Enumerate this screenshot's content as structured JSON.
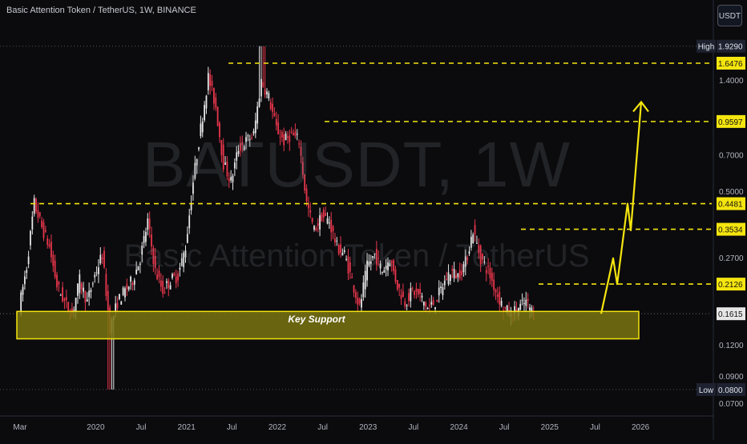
{
  "header": {
    "title": "Basic Attention Token / TetherUS, 1W, BINANCE",
    "currency_button": "USDT"
  },
  "watermark": {
    "symbol": "BATUSDT, 1W",
    "name": "Basic Attention Token / TetherUS"
  },
  "annotations": {
    "support_label": "Key Support"
  },
  "colors": {
    "background": "#0b0b0e",
    "up_candle": "#e6e6e6",
    "down_candle": "#e8364b",
    "level_line": "#f5e50e",
    "support_fill": "#7a7410",
    "support_border": "#f5e50e",
    "projection": "#f5e50e",
    "axis_text": "#b2b5be"
  },
  "chart_data": {
    "type": "candlestick",
    "scale": "log",
    "ylim": [
      0.064,
      2.2
    ],
    "x_ticks": [
      "Mar",
      "2020",
      "Jul",
      "2021",
      "Jul",
      "2022",
      "Jul",
      "2023",
      "Jul",
      "2024",
      "Jul",
      "2025",
      "Jul",
      "2026"
    ],
    "y_ticks": [
      "1.4000",
      "0.7000",
      "0.5000",
      "0.2700",
      "0.1200",
      "0.0900",
      "0.0700"
    ],
    "price_labels": [
      {
        "prefix": "High",
        "value": "1.9290"
      },
      {
        "prefix": "",
        "value": "1.6476"
      },
      {
        "prefix": "",
        "value": "0.9597"
      },
      {
        "prefix": "",
        "value": "0.4481"
      },
      {
        "prefix": "",
        "value": "0.3534"
      },
      {
        "prefix": "",
        "value": "0.2126"
      },
      {
        "prefix": "",
        "value": "0.1615"
      },
      {
        "prefix": "Low",
        "value": "0.0800"
      }
    ],
    "resistance_levels": [
      1.6476,
      0.9597,
      0.4481,
      0.3534,
      0.2126
    ],
    "support_zone": [
      0.128,
      0.165
    ],
    "last_price": 0.1615,
    "series": [
      {
        "t": "2019-03",
        "c": 0.17
      },
      {
        "t": "2019-04",
        "c": 0.25
      },
      {
        "t": "2019-05",
        "c": 0.45
      },
      {
        "t": "2019-06",
        "c": 0.36
      },
      {
        "t": "2019-07",
        "c": 0.3
      },
      {
        "t": "2019-08",
        "c": 0.21
      },
      {
        "t": "2019-09",
        "c": 0.18
      },
      {
        "t": "2019-10",
        "c": 0.16
      },
      {
        "t": "2019-11",
        "c": 0.22
      },
      {
        "t": "2019-12",
        "c": 0.18
      },
      {
        "t": "2020-01",
        "c": 0.23
      },
      {
        "t": "2020-02",
        "c": 0.28
      },
      {
        "t": "2020-03",
        "c": 0.14
      },
      {
        "t": "2020-04",
        "c": 0.18
      },
      {
        "t": "2020-05",
        "c": 0.2
      },
      {
        "t": "2020-06",
        "c": 0.22
      },
      {
        "t": "2020-07",
        "c": 0.27
      },
      {
        "t": "2020-08",
        "c": 0.38
      },
      {
        "t": "2020-09",
        "c": 0.24
      },
      {
        "t": "2020-10",
        "c": 0.2
      },
      {
        "t": "2020-11",
        "c": 0.22
      },
      {
        "t": "2020-12",
        "c": 0.23
      },
      {
        "t": "2021-01",
        "c": 0.3
      },
      {
        "t": "2021-02",
        "c": 0.55
      },
      {
        "t": "2021-03",
        "c": 0.9
      },
      {
        "t": "2021-04",
        "c": 1.45
      },
      {
        "t": "2021-05",
        "c": 1.1
      },
      {
        "t": "2021-06",
        "c": 0.65
      },
      {
        "t": "2021-07",
        "c": 0.55
      },
      {
        "t": "2021-08",
        "c": 0.75
      },
      {
        "t": "2021-09",
        "c": 0.8
      },
      {
        "t": "2021-10",
        "c": 0.85
      },
      {
        "t": "2021-11",
        "c": 1.4
      },
      {
        "t": "2021-12",
        "c": 1.2
      },
      {
        "t": "2022-01",
        "c": 0.9
      },
      {
        "t": "2022-02",
        "c": 0.8
      },
      {
        "t": "2022-03",
        "c": 0.85
      },
      {
        "t": "2022-04",
        "c": 0.8
      },
      {
        "t": "2022-05",
        "c": 0.45
      },
      {
        "t": "2022-06",
        "c": 0.35
      },
      {
        "t": "2022-07",
        "c": 0.4
      },
      {
        "t": "2022-08",
        "c": 0.38
      },
      {
        "t": "2022-09",
        "c": 0.3
      },
      {
        "t": "2022-10",
        "c": 0.28
      },
      {
        "t": "2022-11",
        "c": 0.22
      },
      {
        "t": "2022-12",
        "c": 0.17
      },
      {
        "t": "2023-01",
        "c": 0.25
      },
      {
        "t": "2023-02",
        "c": 0.28
      },
      {
        "t": "2023-03",
        "c": 0.24
      },
      {
        "t": "2023-04",
        "c": 0.27
      },
      {
        "t": "2023-05",
        "c": 0.21
      },
      {
        "t": "2023-06",
        "c": 0.18
      },
      {
        "t": "2023-07",
        "c": 0.2
      },
      {
        "t": "2023-08",
        "c": 0.19
      },
      {
        "t": "2023-09",
        "c": 0.17
      },
      {
        "t": "2023-10",
        "c": 0.18
      },
      {
        "t": "2023-11",
        "c": 0.21
      },
      {
        "t": "2023-12",
        "c": 0.24
      },
      {
        "t": "2024-01",
        "c": 0.23
      },
      {
        "t": "2024-02",
        "c": 0.26
      },
      {
        "t": "2024-03",
        "c": 0.35
      },
      {
        "t": "2024-04",
        "c": 0.27
      },
      {
        "t": "2024-05",
        "c": 0.24
      },
      {
        "t": "2024-06",
        "c": 0.2
      },
      {
        "t": "2024-07",
        "c": 0.17
      },
      {
        "t": "2024-08",
        "c": 0.16
      },
      {
        "t": "2024-09",
        "c": 0.17
      },
      {
        "t": "2024-10",
        "c": 0.18
      },
      {
        "t": "2024-11",
        "c": 0.1615
      }
    ],
    "projection": [
      0.1615,
      0.27,
      0.2126,
      0.4481,
      0.35,
      1.15
    ]
  }
}
